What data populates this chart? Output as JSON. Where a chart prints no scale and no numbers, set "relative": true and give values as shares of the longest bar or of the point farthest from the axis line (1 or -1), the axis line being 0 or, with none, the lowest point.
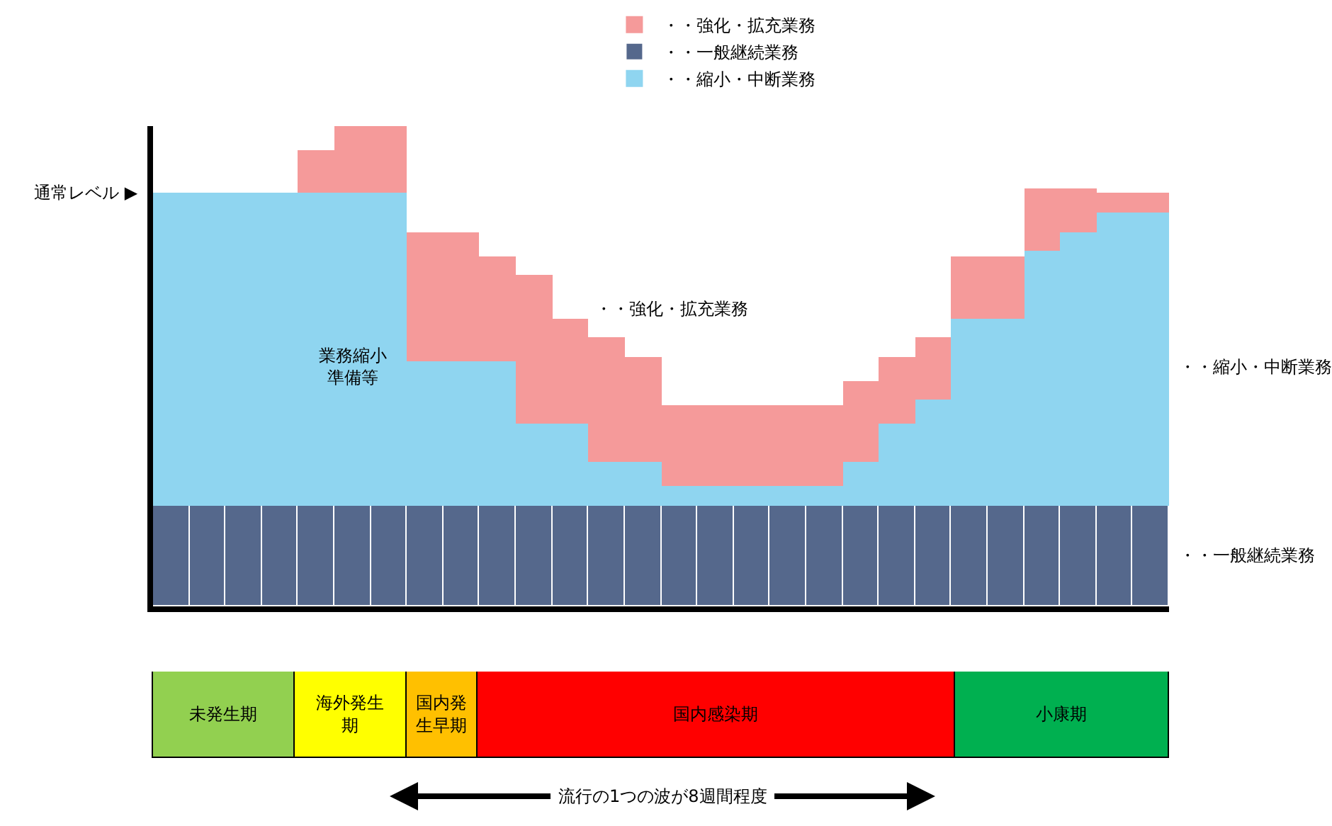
{
  "chart_data": [
    {
      "type": "bar",
      "stacked": true,
      "relative": true,
      "legend": "top right",
      "categories": [
        null,
        null,
        null,
        null,
        null,
        null,
        null,
        null,
        null,
        null,
        null,
        null,
        null,
        null,
        null,
        null,
        null,
        null,
        null,
        null,
        null,
        null,
        null,
        null,
        null,
        null,
        null,
        null
      ],
      "series": [
        {
          "name": "・・一般継続業務",
          "color": "#55688c",
          "values": [
            0.21,
            0.21,
            0.21,
            0.21,
            0.21,
            0.21,
            0.21,
            0.21,
            0.21,
            0.21,
            0.21,
            0.21,
            0.21,
            0.21,
            0.21,
            0.21,
            0.21,
            0.21,
            0.21,
            0.21,
            0.21,
            0.21,
            0.21,
            0.21,
            0.21,
            0.21,
            0.21,
            0.21
          ]
        },
        {
          "name": "・・縮小・中断業務",
          "color": "#8fd5f0",
          "values": [
            0.65,
            0.65,
            0.65,
            0.65,
            0.65,
            0.65,
            0.65,
            0.3,
            0.3,
            0.3,
            0.17,
            0.17,
            0.09,
            0.09,
            0.04,
            0.04,
            0.04,
            0.04,
            0.04,
            0.09,
            0.17,
            0.22,
            0.39,
            0.39,
            0.53,
            0.57,
            0.61,
            0.61
          ]
        },
        {
          "name": "・・強化・拡充業務",
          "color": "#f59a9a",
          "values": [
            0,
            0,
            0,
            0,
            0.09,
            0.14,
            0.14,
            0.27,
            0.27,
            0.22,
            0.31,
            0.22,
            0.26,
            0.22,
            0.17,
            0.17,
            0.17,
            0.17,
            0.17,
            0.17,
            0.14,
            0.13,
            0.13,
            0.13,
            0.13,
            0.09,
            0.04,
            0.04
          ]
        }
      ],
      "annotations": [
        "通常レベル ▶",
        "業務縮小準備等",
        "・・強化・拡充業務",
        "・・縮小・中断業務",
        "・・一般継続業務"
      ]
    },
    {
      "type": "bar",
      "orientation": "horizontal",
      "stacked": true,
      "relative": true,
      "categories": [
        null
      ],
      "series": [
        {
          "name": "未発生期",
          "color": "#92d050",
          "values": [
            0.14
          ]
        },
        {
          "name": "海外発生期",
          "color": "#ffff00",
          "values": [
            0.11
          ]
        },
        {
          "name": "国内発生早期",
          "color": "#ffc000",
          "values": [
            0.07
          ]
        },
        {
          "name": "国内感染期",
          "color": "#ff0000",
          "values": [
            0.47
          ]
        },
        {
          "name": "小康期",
          "color": "#00b050",
          "values": [
            0.21
          ]
        }
      ],
      "annotations": [
        "流行の1つの波が8週間程度"
      ]
    }
  ]
}
